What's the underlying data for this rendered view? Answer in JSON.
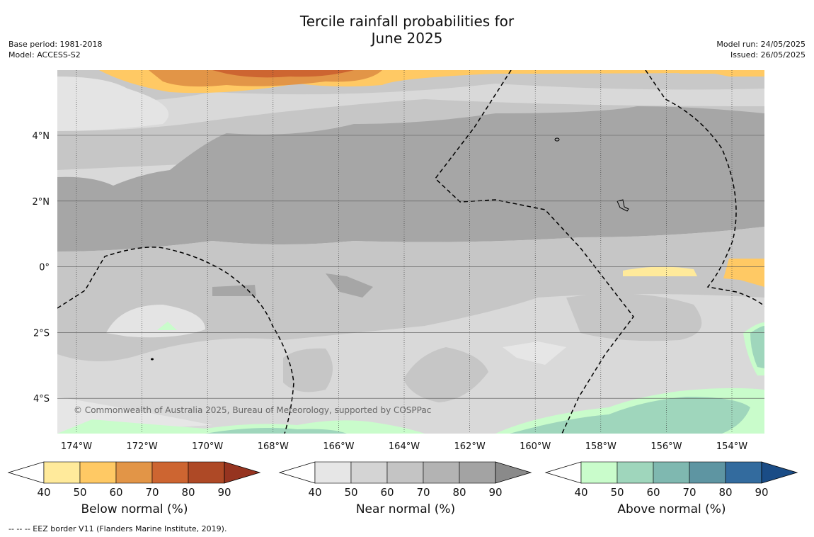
{
  "title": {
    "line1": "Tercile rainfall probabilities for",
    "line2": "June 2025"
  },
  "meta": {
    "base_period": "Base period: 1981-2018",
    "model": "Model: ACCESS-S2",
    "model_run": "Model run: 24/05/2025",
    "issued": "Issued: 26/05/2025"
  },
  "map": {
    "lon_ticks": [
      "174°W",
      "172°W",
      "170°W",
      "168°W",
      "166°W",
      "164°W",
      "162°W",
      "160°W",
      "158°W",
      "156°W",
      "154°W"
    ],
    "lat_ticks": [
      "4°N",
      "2°N",
      "0°",
      "2°S",
      "4°S"
    ],
    "copyright": "© Commonwealth of Australia 2025, Bureau of Meteorology, supported by COSPPac",
    "gridlines": true
  },
  "colorbars": [
    {
      "name": "below",
      "label": "Below normal (%)",
      "ticks": [
        "40",
        "50",
        "60",
        "70",
        "80",
        "90"
      ],
      "colors": [
        "#ffffff",
        "#ffea9b",
        "#ffc964",
        "#e29547",
        "#cd6531",
        "#ae4926",
        "#963420"
      ]
    },
    {
      "name": "near",
      "label": "Near normal (%)",
      "ticks": [
        "40",
        "50",
        "60",
        "70",
        "80",
        "90"
      ],
      "colors": [
        "#ffffff",
        "#e6e6e6",
        "#d4d4d4",
        "#c4c4c4",
        "#b3b3b3",
        "#a3a3a3",
        "#8a8a8a"
      ]
    },
    {
      "name": "above",
      "label": "Above normal (%)",
      "ticks": [
        "40",
        "50",
        "60",
        "70",
        "80",
        "90"
      ],
      "colors": [
        "#ffffff",
        "#c9fccb",
        "#9fd6bc",
        "#7fb8b0",
        "#5e95a2",
        "#336b9e",
        "#1a4c86"
      ]
    }
  ],
  "footnote": "--  --  -- EEZ border V11 (Flanders Marine Institute, 2019)."
}
